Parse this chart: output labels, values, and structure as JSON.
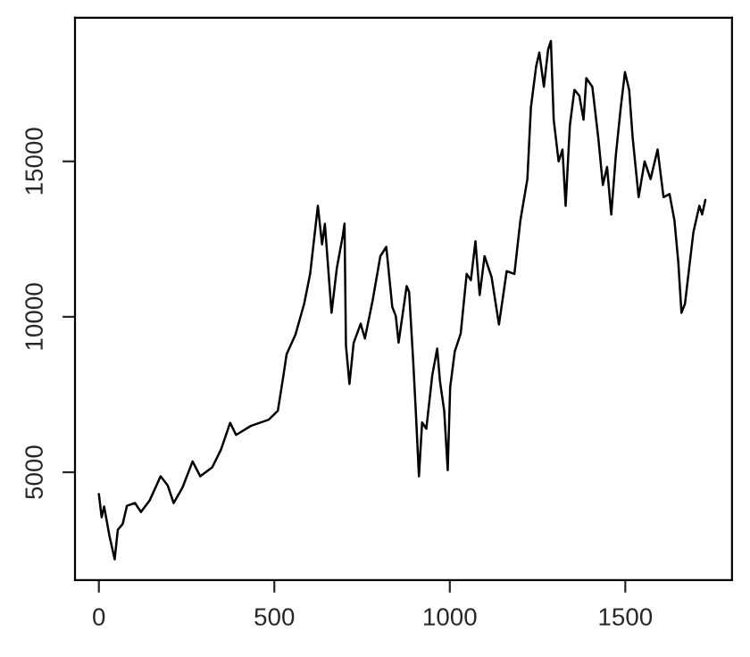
{
  "chart_data": {
    "type": "line",
    "color": "#000000",
    "x": [
      0,
      8,
      15,
      30,
      45,
      54,
      68,
      80,
      103,
      120,
      145,
      176,
      196,
      213,
      238,
      267,
      289,
      323,
      348,
      374,
      391,
      433,
      484,
      510,
      526,
      535,
      560,
      585,
      602,
      624,
      636,
      644,
      663,
      678,
      695,
      700,
      704,
      714,
      726,
      746,
      758,
      780,
      802,
      819,
      836,
      846,
      854,
      877,
      884,
      895,
      903,
      912,
      921,
      933,
      950,
      964,
      972,
      984,
      994,
      1001,
      1014,
      1031,
      1048,
      1060,
      1073,
      1085,
      1099,
      1119,
      1140,
      1162,
      1184,
      1201,
      1221,
      1231,
      1246,
      1255,
      1268,
      1280,
      1288,
      1296,
      1310,
      1321,
      1330,
      1342,
      1355,
      1369,
      1381,
      1389,
      1406,
      1423,
      1436,
      1448,
      1460,
      1473,
      1487,
      1499,
      1511,
      1521,
      1538,
      1555,
      1572,
      1592,
      1609,
      1626,
      1640,
      1651,
      1660,
      1670,
      1682,
      1694,
      1711,
      1719,
      1728
    ],
    "values": [
      4300,
      3550,
      3900,
      2960,
      2200,
      3150,
      3340,
      3920,
      4010,
      3720,
      4100,
      4870,
      4580,
      4010,
      4500,
      5350,
      4870,
      5160,
      5730,
      6590,
      6200,
      6490,
      6690,
      6980,
      8120,
      8800,
      9420,
      10420,
      11380,
      13570,
      12330,
      12990,
      10130,
      11560,
      12610,
      13000,
      9080,
      7840,
      9160,
      9780,
      9300,
      10520,
      11950,
      12250,
      10320,
      10030,
      9170,
      10990,
      10800,
      8700,
      6980,
      4870,
      6600,
      6400,
      8120,
      8980,
      7920,
      6980,
      5070,
      7730,
      8880,
      9460,
      11380,
      11180,
      12430,
      10700,
      11950,
      11280,
      9750,
      11470,
      11380,
      13100,
      14430,
      16730,
      18060,
      18500,
      17400,
      18590,
      18870,
      16340,
      15000,
      15380,
      13570,
      16150,
      17300,
      17110,
      16340,
      17680,
      17400,
      15760,
      14240,
      14820,
      13290,
      15190,
      16730,
      17870,
      17300,
      15760,
      13850,
      15000,
      14430,
      15380,
      13850,
      13950,
      13100,
      11760,
      10130,
      10420,
      11570,
      12720,
      13570,
      13290,
      13760
    ],
    "xlim": [
      -68,
      1804
    ],
    "ylim": [
      1530,
      19620
    ],
    "xticks": [
      0,
      500,
      1000,
      1500
    ],
    "yticks": [
      5000,
      10000,
      15000
    ],
    "grid": false
  }
}
